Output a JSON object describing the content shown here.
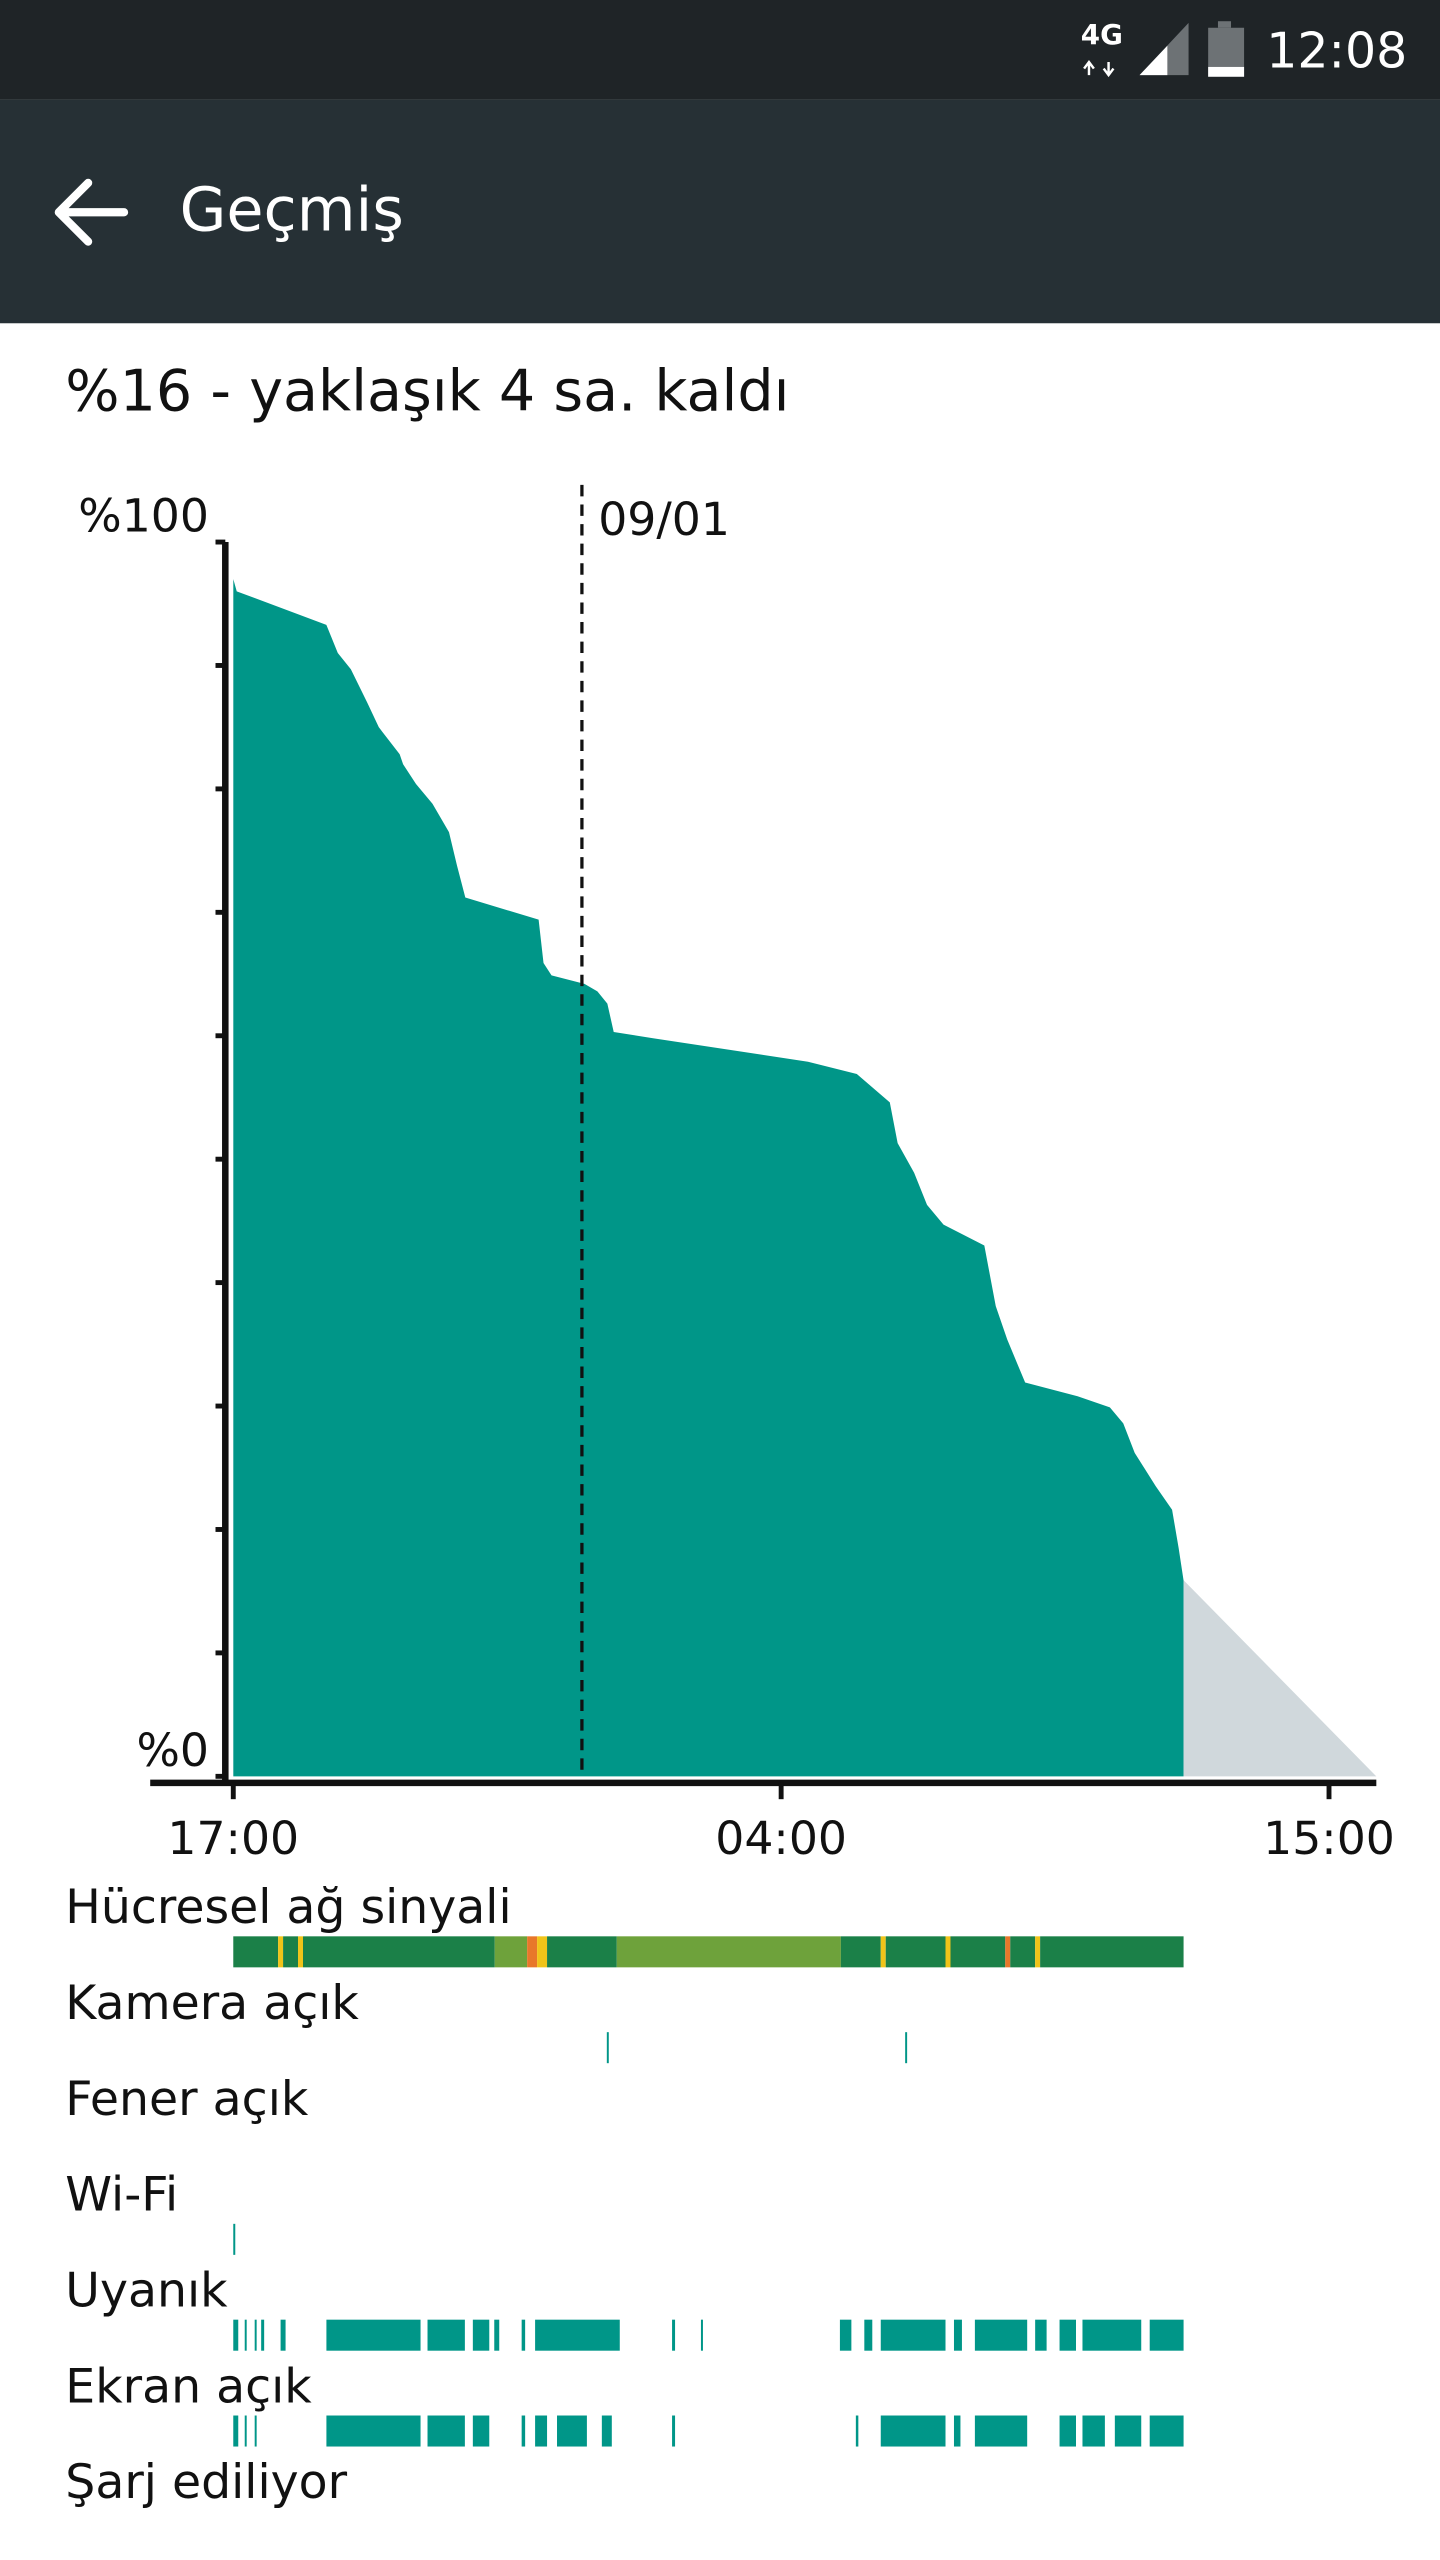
{
  "status_bar": {
    "network": "4G",
    "time": "12:08"
  },
  "toolbar": {
    "title": "Geçmiş"
  },
  "summary": "%16 - yaklaşık 4 sa. kaldı",
  "chart_data": {
    "type": "area",
    "series": [
      {
        "color": "#009688",
        "x": [
          0,
          0.07,
          1.87,
          2.1,
          2.36,
          2.69,
          2.92,
          3.34,
          3.41,
          3.67,
          4.0,
          4.33,
          4.49,
          4.66,
          6.13,
          6.23,
          6.39,
          7.05,
          7.31,
          7.51,
          7.64,
          8.43,
          11.54,
          12.52,
          13.18,
          13.34,
          13.67,
          13.93,
          14.26,
          15.08,
          15.31,
          15.54,
          15.9,
          16.95,
          17.6,
          17.87,
          18.1,
          18.52,
          18.85,
          18.98,
          19.08
        ],
        "values": [
          97,
          96,
          93.3,
          91,
          89.7,
          87,
          85,
          82.8,
          82,
          80.4,
          78.8,
          76.5,
          73.8,
          71.2,
          69.4,
          65.9,
          64.9,
          64.2,
          63.6,
          62.6,
          60.3,
          59.8,
          57.9,
          56.9,
          54.6,
          51.3,
          48.9,
          46.3,
          44.7,
          43.0,
          38.1,
          35.4,
          31.9,
          30.8,
          29.9,
          28.6,
          26.2,
          23.5,
          21.6,
          18.5,
          15.9
        ]
      },
      {
        "color": "#d0d8dc",
        "x": [
          19.08,
          22.95
        ],
        "values": [
          15.9,
          0
        ]
      }
    ],
    "xlim": [
      -0.16,
      22.95
    ],
    "ylim": [
      0,
      100
    ],
    "xticks": [
      {
        "value": 0,
        "label": "17:00"
      },
      {
        "value": 11,
        "label": "04:00"
      },
      {
        "value": 22,
        "label": "15:00"
      }
    ],
    "yticks": [
      {
        "value": 0,
        "label": "%0"
      },
      {
        "value": 100,
        "label": "%100"
      }
    ],
    "minor_yticks": [
      10,
      20,
      30,
      40,
      50,
      60,
      70,
      80,
      90
    ],
    "annotation": {
      "x": 7,
      "label": "09/01"
    },
    "timelines": [
      {
        "label": "Hücresel ağ sinyali",
        "segments": [
          [
            0,
            0.9
          ],
          [
            0.9,
            1.0
          ],
          [
            1.0,
            1.3
          ],
          [
            1.3,
            1.4
          ],
          [
            1.4,
            5.25
          ],
          [
            5.25,
            5.9
          ],
          [
            5.9,
            6.1
          ],
          [
            6.1,
            6.3
          ],
          [
            6.3,
            7.7
          ],
          [
            7.7,
            12.2
          ],
          [
            12.2,
            13.0
          ],
          [
            13.0,
            13.1
          ],
          [
            13.1,
            14.3
          ],
          [
            14.3,
            14.4
          ],
          [
            14.4,
            15.5
          ],
          [
            15.5,
            15.6
          ],
          [
            15.6,
            16.1
          ],
          [
            16.1,
            16.2
          ],
          [
            16.2,
            19.08
          ]
        ],
        "colors": [
          "#1b8048",
          "#f0c419",
          "#1b8048",
          "#f0c419",
          "#1b8048",
          "#6ea23b",
          "#e8772a",
          "#f0c419",
          "#1b8048",
          "#6ea23b",
          "#1b8048",
          "#f0c419",
          "#1b8048",
          "#f0c419",
          "#1b8048",
          "#e8772a",
          "#1b8048",
          "#f0c419",
          "#1b8048"
        ]
      },
      {
        "label": "Kamera açık",
        "color": "#009688",
        "segments": [
          [
            7.5,
            7.53
          ],
          [
            13.49,
            13.52
          ]
        ]
      },
      {
        "label": "Fener açık",
        "color": "#009688",
        "segments": []
      },
      {
        "label": "Wi-Fi",
        "color": "#009688",
        "segments": [
          [
            0,
            0.04
          ]
        ]
      },
      {
        "label": "Uyanık",
        "color": "#009688",
        "segments": [
          [
            0,
            0.1
          ],
          [
            0.23,
            0.26
          ],
          [
            0.43,
            0.46
          ],
          [
            0.56,
            0.62
          ],
          [
            0.95,
            1.05
          ],
          [
            1.87,
            3.76
          ],
          [
            3.9,
            4.65
          ],
          [
            4.81,
            5.14
          ],
          [
            5.24,
            5.34
          ],
          [
            5.79,
            5.86
          ],
          [
            6.06,
            7.76
          ],
          [
            8.81,
            8.87
          ],
          [
            9.39,
            9.43
          ],
          [
            12.18,
            12.41
          ],
          [
            12.67,
            12.83
          ],
          [
            13.0,
            14.3
          ],
          [
            14.47,
            14.63
          ],
          [
            14.89,
            15.94
          ],
          [
            16.1,
            16.33
          ],
          [
            16.59,
            16.92
          ],
          [
            17.05,
            18.23
          ],
          [
            18.4,
            19.08
          ]
        ]
      },
      {
        "label": "Ekran açık",
        "color": "#009688",
        "segments": [
          [
            0,
            0.1
          ],
          [
            0.23,
            0.26
          ],
          [
            0.43,
            0.46
          ],
          [
            1.87,
            3.76
          ],
          [
            3.9,
            4.65
          ],
          [
            4.81,
            5.14
          ],
          [
            5.79,
            5.86
          ],
          [
            6.06,
            6.3
          ],
          [
            6.5,
            7.1
          ],
          [
            7.4,
            7.6
          ],
          [
            8.81,
            8.87
          ],
          [
            12.5,
            12.55
          ],
          [
            13.0,
            14.3
          ],
          [
            14.47,
            14.6
          ],
          [
            14.89,
            15.94
          ],
          [
            16.59,
            16.92
          ],
          [
            17.05,
            17.5
          ],
          [
            17.7,
            18.23
          ],
          [
            18.4,
            19.08
          ]
        ]
      },
      {
        "label": "Şarj ediliyor",
        "color": "#009688",
        "segments": []
      }
    ]
  }
}
